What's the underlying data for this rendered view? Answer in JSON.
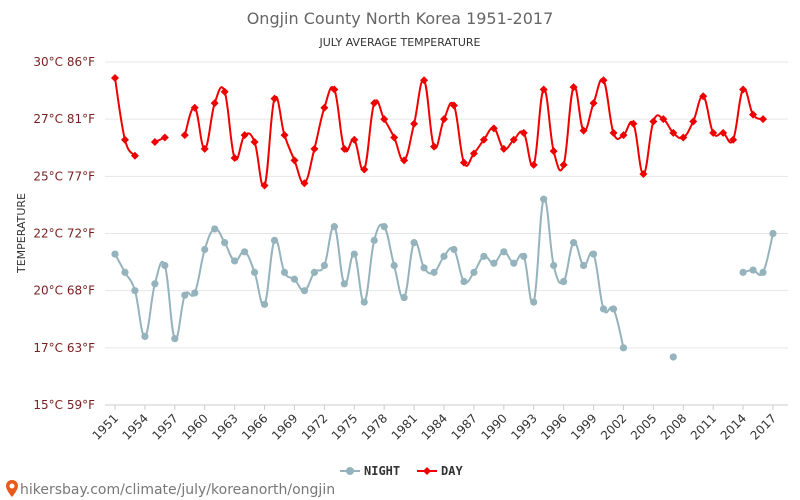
{
  "chart_data": {
    "type": "line",
    "title": "Ongjin County North Korea 1951-2017",
    "subtitle": "JULY AVERAGE TEMPERATURE",
    "ylabel": "TEMPERATURE",
    "ylim": [
      15,
      30
    ],
    "y_ticks": [
      {
        "value": 30,
        "label": "30°C 86°F"
      },
      {
        "value": 27.5,
        "label": "27°C 81°F"
      },
      {
        "value": 25,
        "label": "25°C 77°F"
      },
      {
        "value": 22.5,
        "label": "22°C 72°F"
      },
      {
        "value": 20,
        "label": "20°C 68°F"
      },
      {
        "value": 17.5,
        "label": "17°C 63°F"
      },
      {
        "value": 15,
        "label": "15°C 59°F"
      }
    ],
    "x_range": [
      1951,
      2017
    ],
    "x_ticks": [
      1951,
      1954,
      1957,
      1960,
      1963,
      1966,
      1969,
      1972,
      1975,
      1978,
      1981,
      1984,
      1987,
      1990,
      1993,
      1996,
      1999,
      2002,
      2005,
      2008,
      2011,
      2014,
      2017
    ],
    "grid": "horizontal",
    "legend_position": "bottom",
    "series": [
      {
        "name": "NIGHT",
        "color": "#95b3bc",
        "x": [
          1951,
          1952,
          1953,
          1954,
          1955,
          1956,
          1957,
          1958,
          1959,
          1960,
          1961,
          1962,
          1963,
          1964,
          1965,
          1966,
          1967,
          1968,
          1969,
          1970,
          1971,
          1972,
          1973,
          1974,
          1975,
          1976,
          1977,
          1978,
          1979,
          1980,
          1981,
          1982,
          1983,
          1984,
          1985,
          1986,
          1987,
          1988,
          1989,
          1990,
          1991,
          1992,
          1993,
          1994,
          1995,
          1996,
          1997,
          1998,
          1999,
          2000,
          2001,
          2002,
          2003,
          2004,
          2005,
          2006,
          2007,
          2008,
          2009,
          2010,
          2011,
          2012,
          2013,
          2014,
          2015,
          2016,
          2017
        ],
        "values": [
          21.6,
          20.8,
          20.0,
          18.0,
          20.3,
          21.1,
          17.9,
          19.8,
          19.9,
          21.8,
          22.7,
          22.1,
          21.3,
          21.7,
          20.8,
          19.4,
          22.2,
          20.8,
          20.5,
          20.0,
          20.8,
          21.1,
          22.8,
          20.3,
          21.6,
          19.5,
          22.2,
          22.8,
          21.1,
          19.7,
          22.1,
          21.0,
          20.8,
          21.5,
          21.8,
          20.4,
          20.8,
          21.5,
          21.2,
          21.7,
          21.2,
          21.5,
          19.5,
          24.0,
          21.1,
          20.4,
          22.1,
          21.1,
          21.6,
          19.2,
          19.2,
          17.5,
          null,
          null,
          null,
          null,
          17.1,
          null,
          null,
          null,
          null,
          null,
          null,
          20.8,
          20.9,
          20.8,
          22.5
        ]
      },
      {
        "name": "DAY",
        "color": "#ee0000",
        "x": [
          1951,
          1952,
          1953,
          1954,
          1955,
          1956,
          1957,
          1958,
          1959,
          1960,
          1961,
          1962,
          1963,
          1964,
          1965,
          1966,
          1967,
          1968,
          1969,
          1970,
          1971,
          1972,
          1973,
          1974,
          1975,
          1976,
          1977,
          1978,
          1979,
          1980,
          1981,
          1982,
          1983,
          1984,
          1985,
          1986,
          1987,
          1988,
          1989,
          1990,
          1991,
          1992,
          1993,
          1994,
          1995,
          1996,
          1997,
          1998,
          1999,
          2000,
          2001,
          2002,
          2003,
          2004,
          2005,
          2006,
          2007,
          2008,
          2009,
          2010,
          2011,
          2012,
          2013,
          2014,
          2015,
          2016,
          2017
        ],
        "values": [
          29.3,
          26.6,
          25.9,
          null,
          26.5,
          26.7,
          null,
          26.8,
          28.0,
          26.2,
          28.2,
          28.7,
          25.8,
          26.8,
          26.5,
          24.6,
          28.4,
          26.8,
          25.7,
          24.7,
          26.2,
          28.0,
          28.8,
          26.2,
          26.6,
          25.3,
          28.2,
          27.5,
          26.7,
          25.7,
          27.3,
          29.2,
          26.3,
          27.5,
          28.1,
          25.6,
          26.0,
          26.6,
          27.1,
          26.2,
          26.6,
          26.9,
          25.5,
          28.8,
          26.1,
          25.5,
          28.9,
          27.0,
          28.2,
          29.2,
          26.9,
          26.8,
          27.3,
          25.1,
          27.4,
          27.5,
          26.9,
          26.7,
          27.4,
          28.5,
          26.9,
          26.9,
          26.6,
          28.8,
          27.7,
          27.5,
          null
        ]
      }
    ]
  },
  "legend": {
    "items": [
      {
        "label": "NIGHT",
        "color": "#95b3bc"
      },
      {
        "label": "DAY",
        "color": "#ee0000"
      }
    ]
  },
  "footer": {
    "text": "hikersbay.com/climate/july/koreanorth/ongjin",
    "icon": "map-pin-icon",
    "icon_color": "#e8591a"
  }
}
